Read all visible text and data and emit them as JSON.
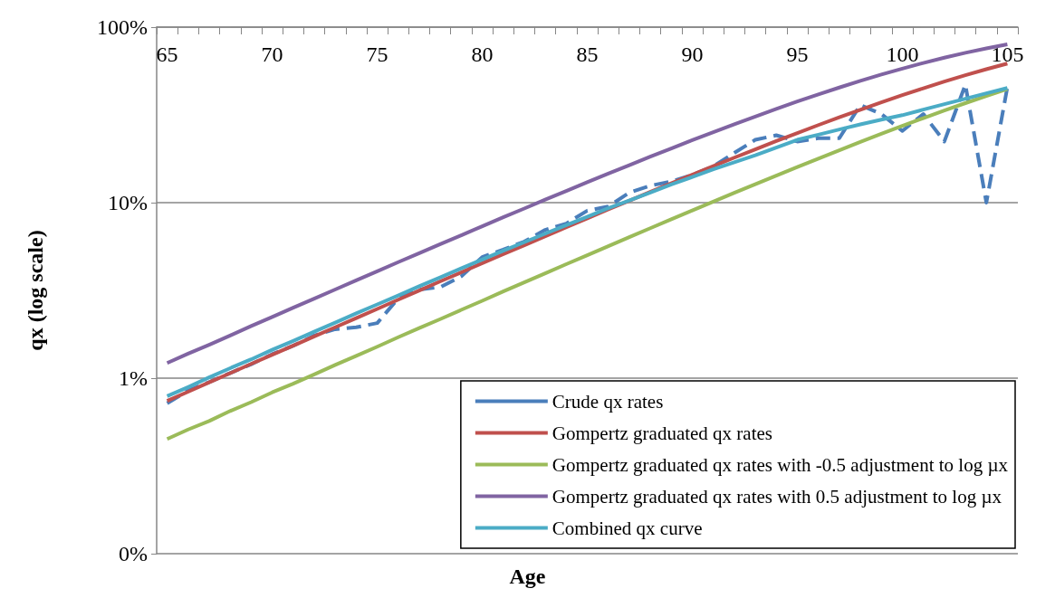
{
  "chart_data": {
    "type": "line",
    "xlabel": "Age",
    "ylabel": "qx (log scale)",
    "categories": [
      "65",
      null,
      null,
      null,
      null,
      "70",
      null,
      null,
      null,
      null,
      "75",
      null,
      null,
      null,
      null,
      "80",
      null,
      null,
      null,
      null,
      "85",
      null,
      null,
      null,
      null,
      "90",
      null,
      null,
      null,
      null,
      "95",
      null,
      null,
      null,
      null,
      "100",
      null,
      null,
      null,
      null,
      "105"
    ],
    "series": [
      {
        "name": "Crude qx rates",
        "color": "#4a7ebb",
        "line_style": "dashed",
        "values": [
          0.72,
          0.85,
          0.95,
          1.07,
          1.2,
          1.37,
          1.53,
          1.75,
          1.9,
          1.95,
          2.06,
          2.85,
          3.2,
          3.3,
          3.8,
          4.9,
          5.4,
          6.0,
          7.0,
          7.6,
          9.0,
          9.5,
          11.4,
          12.5,
          13.2,
          14.4,
          16.1,
          19.2,
          22.8,
          24.2,
          22.3,
          23.3,
          23.3,
          36,
          32,
          25.6,
          32,
          22.3,
          47,
          10,
          45.6
        ]
      },
      {
        "name": "Gompertz graduated qx rates",
        "color": "#c0504d",
        "line_style": "solid",
        "values": [
          0.742,
          0.837,
          0.946,
          1.067,
          1.205,
          1.36,
          1.53,
          1.73,
          1.95,
          2.2,
          2.48,
          2.8,
          3.16,
          3.56,
          4.01,
          4.52,
          5.09,
          5.72,
          6.44,
          7.24,
          8.14,
          9.15,
          10.26,
          11.51,
          12.91,
          14.45,
          16.16,
          18.05,
          20.13,
          22.42,
          24.93,
          27.67,
          30.64,
          33.84,
          37.29,
          40.97,
          44.85,
          48.94,
          53.2,
          57.58,
          62.03
        ]
      },
      {
        "name": "Gompertz graduated qx rates with -0.5 adjustment to log µx",
        "color": "#9bbb59",
        "line_style": "solid",
        "values": [
          0.45,
          0.51,
          0.57,
          0.65,
          0.73,
          0.83,
          0.93,
          1.05,
          1.19,
          1.34,
          1.51,
          1.71,
          1.93,
          2.17,
          2.45,
          2.76,
          3.12,
          3.51,
          3.96,
          4.46,
          5.02,
          5.65,
          6.36,
          7.15,
          8.04,
          9.03,
          10.14,
          11.38,
          12.74,
          14.27,
          15.96,
          17.83,
          19.9,
          22.16,
          24.65,
          27.35,
          30.3,
          33.48,
          36.9,
          40.55,
          44.42
        ]
      },
      {
        "name": "Gompertz graduated qx rates with 0.5 adjustment to log µx",
        "color": "#8064a2",
        "line_style": "solid",
        "values": [
          1.22,
          1.38,
          1.55,
          1.75,
          1.98,
          2.23,
          2.52,
          2.84,
          3.2,
          3.61,
          4.06,
          4.58,
          5.15,
          5.8,
          6.52,
          7.34,
          8.25,
          9.26,
          10.4,
          11.66,
          13.07,
          14.63,
          16.36,
          18.27,
          20.37,
          22.69,
          25.22,
          27.98,
          30.97,
          34.21,
          37.68,
          41.38,
          45.29,
          49.39,
          53.67,
          58.06,
          62.52,
          66.99,
          71.4,
          75.68,
          79.74
        ]
      },
      {
        "name": "Combined qx curve",
        "color": "#4bacc6",
        "line_style": "solid",
        "values": [
          0.79,
          0.89,
          1.01,
          1.14,
          1.28,
          1.45,
          1.63,
          1.84,
          2.07,
          2.34,
          2.63,
          2.96,
          3.34,
          3.75,
          4.22,
          4.74,
          5.32,
          5.95,
          6.66,
          7.44,
          8.3,
          9.3,
          10.3,
          11.4,
          12.7,
          14.0,
          15.5,
          17.0,
          18.6,
          20.6,
          22.8,
          24.4,
          26.1,
          27.9,
          29.7,
          31.5,
          33.9,
          36.4,
          39.1,
          42.0,
          45.0
        ]
      }
    ],
    "log": "y",
    "ylim": [
      0.1,
      100
    ],
    "yticks": [
      {
        "value": 0.1,
        "label": "0%"
      },
      {
        "value": 1,
        "label": "1%"
      },
      {
        "value": 10,
        "label": "10%"
      },
      {
        "value": 100,
        "label": "100%"
      }
    ],
    "grid": "y",
    "legend": "bottom right",
    "marker": "none"
  }
}
